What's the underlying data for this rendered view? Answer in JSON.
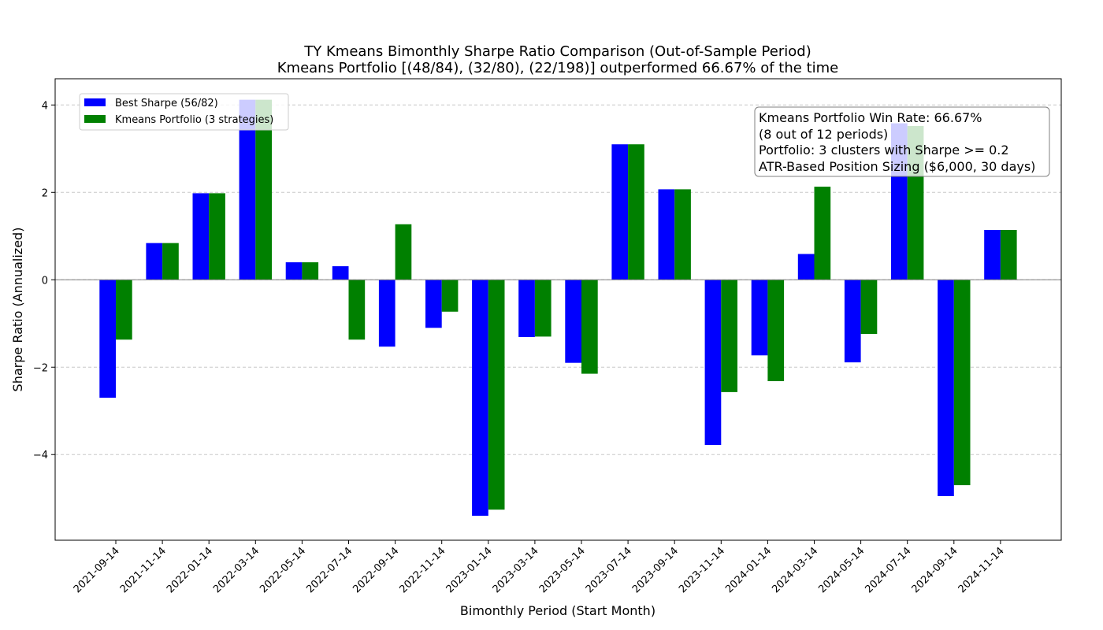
{
  "chart_data": {
    "type": "bar",
    "title": "TY Kmeans Bimonthly Sharpe Ratio Comparison (Out-of-Sample Period)",
    "subtitle": "Kmeans Portfolio [(48/84), (32/80), (22/198)] outperformed 66.67% of the time",
    "xlabel": "Bimonthly Period (Start Month)",
    "ylabel": "Sharpe Ratio (Annualized)",
    "ylim": [
      -5.96,
      4.6
    ],
    "yticks": [
      -4,
      -2,
      0,
      2,
      4
    ],
    "ytick_labels": [
      "−4",
      "−2",
      "0",
      "2",
      "4"
    ],
    "grid": "horizontal dashed",
    "legend_position": "upper-left",
    "categories": [
      "2021-09-14",
      "2021-11-14",
      "2022-01-14",
      "2022-03-14",
      "2022-05-14",
      "2022-07-14",
      "2022-09-14",
      "2022-11-14",
      "2023-01-14",
      "2023-03-14",
      "2023-05-14",
      "2023-07-14",
      "2023-09-14",
      "2023-11-14",
      "2024-01-14",
      "2024-03-14",
      "2024-05-14",
      "2024-07-14",
      "2024-09-14",
      "2024-11-14"
    ],
    "series": [
      {
        "name": "Best Sharpe (56/82)",
        "color": "#0000ff",
        "values": [
          -2.7,
          0.84,
          1.98,
          4.12,
          0.4,
          0.31,
          -1.53,
          -1.1,
          -5.4,
          -1.31,
          -1.9,
          3.1,
          2.07,
          -3.78,
          -1.73,
          0.59,
          -1.89,
          3.58,
          -4.95,
          1.14
        ]
      },
      {
        "name": "Kmeans Portfolio (3 strategies)",
        "color": "#008000",
        "values": [
          -1.37,
          0.84,
          1.98,
          4.12,
          0.4,
          -1.37,
          1.27,
          -0.73,
          -5.26,
          -1.3,
          -2.15,
          3.1,
          2.07,
          -2.57,
          -2.32,
          2.13,
          -1.24,
          3.52,
          -4.7,
          1.14
        ]
      }
    ],
    "annotation": {
      "lines": [
        "Kmeans Portfolio Win Rate: 66.67%",
        "(8 out of 12 periods)",
        "Portfolio: 3 clusters with Sharpe >= 0.2",
        "ATR-Based Position Sizing ($6,000, 30 days)"
      ],
      "position": "upper-right"
    }
  }
}
